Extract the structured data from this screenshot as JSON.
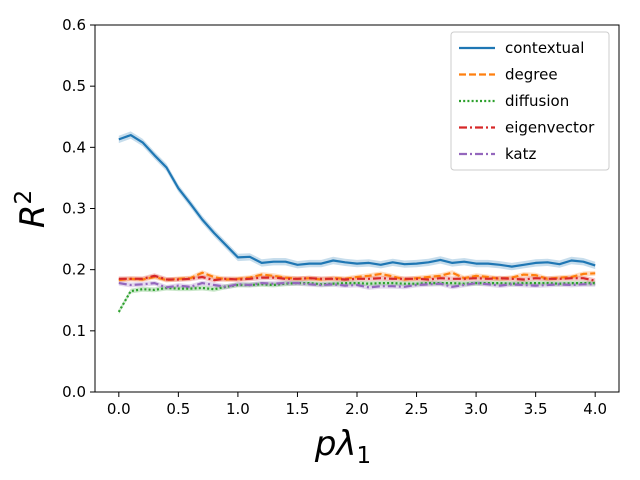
{
  "chart_data": {
    "type": "line",
    "xlabel": "pλ",
    "xlabel_sub": "1",
    "ylabel": "R",
    "ylabel_sup": "2",
    "xlim": [
      -0.2,
      4.2
    ],
    "ylim": [
      0.0,
      0.6
    ],
    "xticks": [
      0.0,
      0.5,
      1.0,
      1.5,
      2.0,
      2.5,
      3.0,
      3.5,
      4.0
    ],
    "xtick_labels": [
      "0.0",
      "0.5",
      "1.0",
      "1.5",
      "2.0",
      "2.5",
      "3.0",
      "3.5",
      "4.0"
    ],
    "yticks": [
      0.0,
      0.1,
      0.2,
      0.3,
      0.4,
      0.5,
      0.6
    ],
    "ytick_labels": [
      "0.0",
      "0.1",
      "0.2",
      "0.3",
      "0.4",
      "0.5",
      "0.6"
    ],
    "legend_position": "top-right",
    "x": [
      0.0,
      0.1,
      0.2,
      0.3,
      0.4,
      0.5,
      0.6,
      0.7,
      0.8,
      0.9,
      1.0,
      1.1,
      1.2,
      1.3,
      1.4,
      1.5,
      1.6,
      1.7,
      1.8,
      1.9,
      2.0,
      2.1,
      2.2,
      2.3,
      2.4,
      2.5,
      2.6,
      2.7,
      2.8,
      2.9,
      3.0,
      3.1,
      3.2,
      3.3,
      3.4,
      3.5,
      3.6,
      3.7,
      3.8,
      3.9,
      4.0
    ],
    "series": [
      {
        "name": "contextual",
        "color": "#1f77b4",
        "dash": "solid",
        "values": [
          0.413,
          0.42,
          0.408,
          0.387,
          0.367,
          0.333,
          0.308,
          0.282,
          0.26,
          0.24,
          0.22,
          0.221,
          0.211,
          0.213,
          0.213,
          0.208,
          0.21,
          0.21,
          0.215,
          0.212,
          0.21,
          0.211,
          0.208,
          0.212,
          0.209,
          0.21,
          0.212,
          0.216,
          0.211,
          0.213,
          0.21,
          0.21,
          0.208,
          0.205,
          0.208,
          0.211,
          0.212,
          0.209,
          0.215,
          0.213,
          0.207
        ]
      },
      {
        "name": "degree",
        "color": "#ff7f0e",
        "dash": "dashed",
        "values": [
          0.183,
          0.185,
          0.184,
          0.188,
          0.183,
          0.185,
          0.186,
          0.195,
          0.188,
          0.184,
          0.185,
          0.187,
          0.192,
          0.19,
          0.187,
          0.185,
          0.186,
          0.184,
          0.186,
          0.185,
          0.188,
          0.19,
          0.193,
          0.189,
          0.184,
          0.186,
          0.188,
          0.19,
          0.195,
          0.186,
          0.19,
          0.188,
          0.185,
          0.187,
          0.192,
          0.191,
          0.185,
          0.187,
          0.188,
          0.193,
          0.194
        ]
      },
      {
        "name": "diffusion",
        "color": "#2ca02c",
        "dash": "dotted",
        "values": [
          0.131,
          0.165,
          0.168,
          0.167,
          0.17,
          0.169,
          0.169,
          0.17,
          0.168,
          0.172,
          0.175,
          0.175,
          0.176,
          0.175,
          0.177,
          0.178,
          0.178,
          0.176,
          0.177,
          0.178,
          0.178,
          0.177,
          0.178,
          0.178,
          0.177,
          0.177,
          0.178,
          0.178,
          0.178,
          0.177,
          0.178,
          0.178,
          0.178,
          0.177,
          0.178,
          0.178,
          0.178,
          0.177,
          0.178,
          0.178,
          0.178
        ]
      },
      {
        "name": "eigenvector",
        "color": "#d62728",
        "dash": "dashdot",
        "values": [
          0.185,
          0.185,
          0.185,
          0.19,
          0.184,
          0.184,
          0.185,
          0.188,
          0.183,
          0.185,
          0.184,
          0.185,
          0.187,
          0.187,
          0.185,
          0.185,
          0.186,
          0.185,
          0.185,
          0.184,
          0.185,
          0.185,
          0.186,
          0.185,
          0.185,
          0.185,
          0.184,
          0.186,
          0.185,
          0.185,
          0.186,
          0.185,
          0.186,
          0.185,
          0.184,
          0.186,
          0.185,
          0.185,
          0.186,
          0.186,
          0.182
        ]
      },
      {
        "name": "katz",
        "color": "#9467bd",
        "dash": "dashdot",
        "values": [
          0.178,
          0.175,
          0.176,
          0.178,
          0.171,
          0.174,
          0.172,
          0.178,
          0.175,
          0.172,
          0.176,
          0.175,
          0.178,
          0.177,
          0.178,
          0.178,
          0.176,
          0.175,
          0.176,
          0.174,
          0.175,
          0.171,
          0.173,
          0.173,
          0.172,
          0.175,
          0.176,
          0.177,
          0.172,
          0.175,
          0.178,
          0.176,
          0.174,
          0.176,
          0.175,
          0.174,
          0.175,
          0.176,
          0.175,
          0.176,
          0.176
        ]
      }
    ]
  }
}
